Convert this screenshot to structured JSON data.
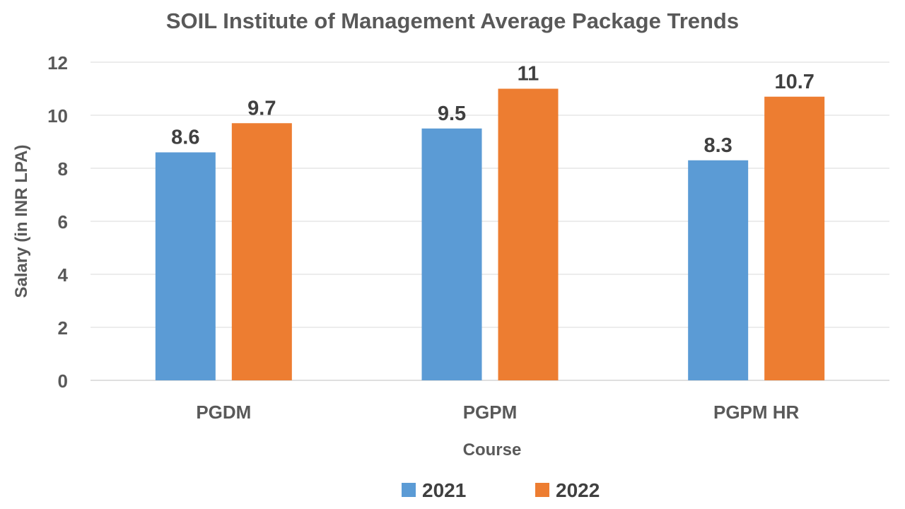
{
  "chart_data": {
    "type": "bar",
    "title": "SOIL Institute of Management Average Package Trends",
    "xlabel": "Course",
    "ylabel": "Salary (in INR LPA)",
    "categories": [
      "PGDM",
      "PGPM",
      "PGPM HR"
    ],
    "series": [
      {
        "name": "2021",
        "values": [
          8.6,
          9.5,
          8.3
        ],
        "color": "#5B9BD5"
      },
      {
        "name": "2022",
        "values": [
          9.7,
          11,
          10.7
        ],
        "color": "#ED7D31"
      }
    ],
    "ylim": [
      0,
      12
    ],
    "yticks": [
      0,
      2,
      4,
      6,
      8,
      10,
      12
    ],
    "grid": true,
    "legend": "bottom",
    "data_labels": true
  }
}
